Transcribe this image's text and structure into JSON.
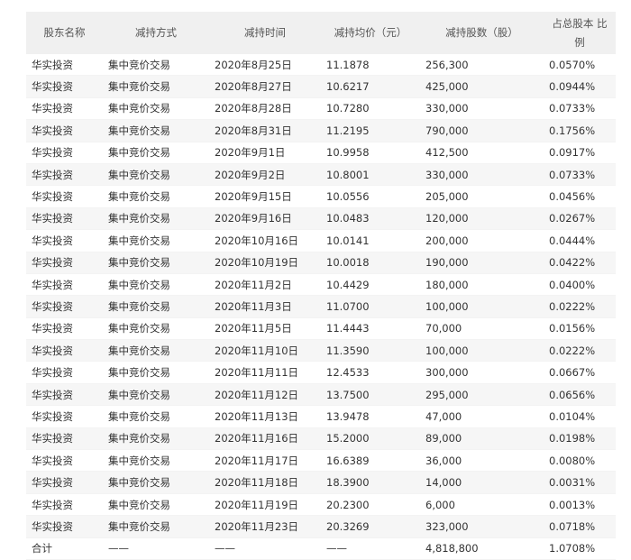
{
  "headers": [
    "股东名称",
    "减持方式",
    "减持时间",
    "减持均价（元）",
    "减持股数（股）",
    "占总股本 比例"
  ],
  "rows": [
    [
      "华实投资",
      "集中竞价交易",
      "2020年8月25日",
      "11.1878",
      "256,300",
      "0.0570%"
    ],
    [
      "华实投资",
      "集中竞价交易",
      "2020年8月27日",
      "10.6217",
      "425,000",
      "0.0944%"
    ],
    [
      "华实投资",
      "集中竞价交易",
      "2020年8月28日",
      "10.7280",
      "330,000",
      "0.0733%"
    ],
    [
      "华实投资",
      "集中竞价交易",
      "2020年8月31日",
      "11.2195",
      "790,000",
      "0.1756%"
    ],
    [
      "华实投资",
      "集中竞价交易",
      "2020年9月1日",
      "10.9958",
      "412,500",
      "0.0917%"
    ],
    [
      "华实投资",
      "集中竞价交易",
      "2020年9月2日",
      "10.8001",
      "330,000",
      "0.0733%"
    ],
    [
      "华实投资",
      "集中竞价交易",
      "2020年9月15日",
      "10.0556",
      "205,000",
      "0.0456%"
    ],
    [
      "华实投资",
      "集中竞价交易",
      "2020年9月16日",
      "10.0483",
      "120,000",
      "0.0267%"
    ],
    [
      "华实投资",
      "集中竞价交易",
      "2020年10月16日",
      "10.0141",
      "200,000",
      "0.0444%"
    ],
    [
      "华实投资",
      "集中竞价交易",
      "2020年10月19日",
      "10.0018",
      "190,000",
      "0.0422%"
    ],
    [
      "华实投资",
      "集中竞价交易",
      "2020年11月2日",
      "10.4429",
      "180,000",
      "0.0400%"
    ],
    [
      "华实投资",
      "集中竞价交易",
      "2020年11月3日",
      "11.0700",
      "100,000",
      "0.0222%"
    ],
    [
      "华实投资",
      "集中竞价交易",
      "2020年11月5日",
      "11.4443",
      "70,000",
      "0.0156%"
    ],
    [
      "华实投资",
      "集中竞价交易",
      "2020年11月10日",
      "11.3590",
      "100,000",
      "0.0222%"
    ],
    [
      "华实投资",
      "集中竞价交易",
      "2020年11月11日",
      "12.4533",
      "300,000",
      "0.0667%"
    ],
    [
      "华实投资",
      "集中竞价交易",
      "2020年11月12日",
      "13.7500",
      "295,000",
      "0.0656%"
    ],
    [
      "华实投资",
      "集中竞价交易",
      "2020年11月13日",
      "13.9478",
      "47,000",
      "0.0104%"
    ],
    [
      "华实投资",
      "集中竞价交易",
      "2020年11月16日",
      "15.2000",
      "89,000",
      "0.0198%"
    ],
    [
      "华实投资",
      "集中竞价交易",
      "2020年11月17日",
      "16.6389",
      "36,000",
      "0.0080%"
    ],
    [
      "华实投资",
      "集中竞价交易",
      "2020年11月18日",
      "18.3900",
      "14,000",
      "0.0031%"
    ],
    [
      "华实投资",
      "集中竞价交易",
      "2020年11月19日",
      "20.2300",
      "6,000",
      "0.0013%"
    ],
    [
      "华实投资",
      "集中竞价交易",
      "2020年11月23日",
      "20.3269",
      "323,000",
      "0.0718%"
    ],
    [
      "合计",
      "——",
      "——",
      "——",
      "4,818,800",
      "1.0708%"
    ]
  ]
}
